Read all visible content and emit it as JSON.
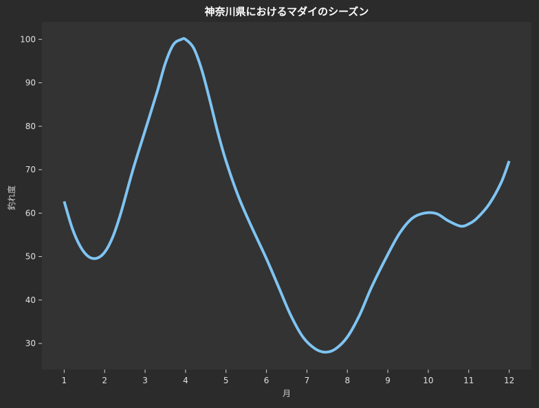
{
  "chart_data": {
    "type": "line",
    "title": "神奈川県におけるマダイのシーズン",
    "xlabel": "月",
    "ylabel": "釣れ度",
    "x": [
      1,
      2,
      3,
      4,
      5,
      6,
      7,
      8,
      9,
      10,
      11,
      12
    ],
    "xlim": [
      0.45,
      12.55
    ],
    "ylim": [
      24,
      104
    ],
    "yticks": [
      30,
      40,
      50,
      60,
      70,
      80,
      90,
      100
    ],
    "series": [
      {
        "name": "",
        "color": "#7fc4f2",
        "points": [
          [
            1,
            62.7
          ],
          [
            1.2,
            56.5
          ],
          [
            1.4,
            52.3
          ],
          [
            1.6,
            50.0
          ],
          [
            1.8,
            49.6
          ],
          [
            2,
            51.0
          ],
          [
            2.2,
            54.5
          ],
          [
            2.4,
            60.0
          ],
          [
            2.7,
            70.0
          ],
          [
            3,
            79.0
          ],
          [
            3.3,
            88.0
          ],
          [
            3.5,
            94.5
          ],
          [
            3.7,
            98.8
          ],
          [
            3.9,
            100.0
          ],
          [
            4,
            100.0
          ],
          [
            4.2,
            98.0
          ],
          [
            4.4,
            93.0
          ],
          [
            4.6,
            86.0
          ],
          [
            4.8,
            78.5
          ],
          [
            5,
            72.0
          ],
          [
            5.3,
            64.0
          ],
          [
            5.6,
            57.5
          ],
          [
            6,
            49.5
          ],
          [
            6.3,
            43.0
          ],
          [
            6.6,
            36.5
          ],
          [
            6.9,
            31.5
          ],
          [
            7.2,
            28.8
          ],
          [
            7.45,
            28.0
          ],
          [
            7.7,
            28.7
          ],
          [
            8,
            31.5
          ],
          [
            8.3,
            36.5
          ],
          [
            8.6,
            43.0
          ],
          [
            9,
            50.5
          ],
          [
            9.3,
            55.5
          ],
          [
            9.6,
            58.8
          ],
          [
            9.9,
            60.0
          ],
          [
            10.2,
            59.9
          ],
          [
            10.5,
            58.2
          ],
          [
            10.8,
            57.0
          ],
          [
            11,
            57.5
          ],
          [
            11.2,
            58.8
          ],
          [
            11.5,
            62.0
          ],
          [
            11.8,
            67.0
          ],
          [
            12,
            72.0
          ]
        ]
      }
    ],
    "grid": false,
    "background": "#2b2b2b",
    "plot_background": "#333333"
  }
}
